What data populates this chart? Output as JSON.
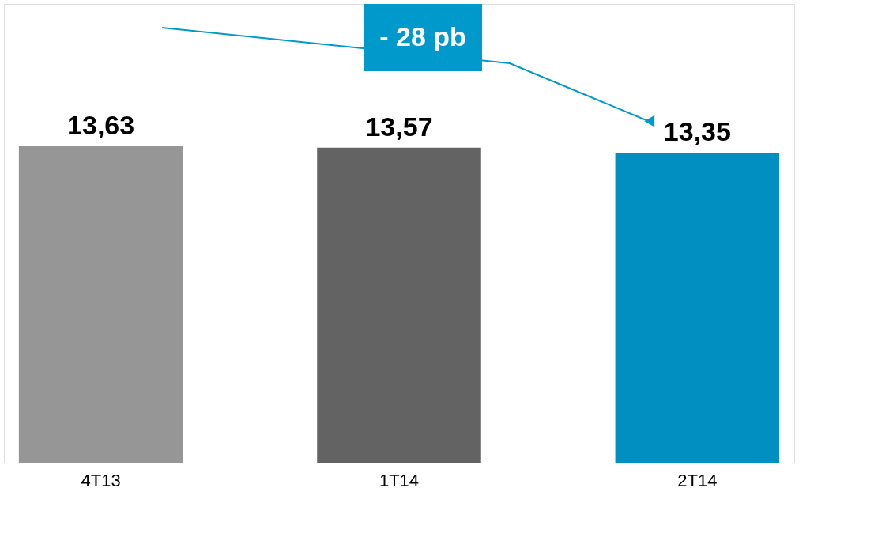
{
  "chart_data": {
    "type": "bar",
    "categories": [
      "4T13",
      "1T14",
      "2T14"
    ],
    "values": [
      13.63,
      13.57,
      13.35
    ],
    "colors": [
      "#969696",
      "#636363",
      "#008fc0"
    ],
    "value_labels": [
      "13,63",
      "13,57",
      "13,35"
    ],
    "annotations": [
      "- 28 pb"
    ]
  }
}
